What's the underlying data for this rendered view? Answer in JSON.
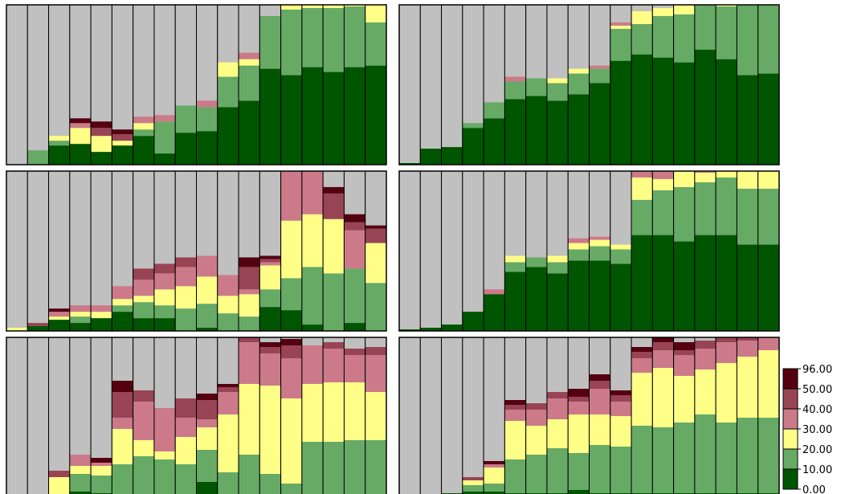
{
  "chart_data": {
    "type": "bar",
    "stacked": true,
    "layout": "small-multiples",
    "panel_grid": {
      "rows": 3,
      "columns": 2
    },
    "y_range": [
      0,
      100
    ],
    "grid": false,
    "axes_labeled": false,
    "remainder_color": "#c0c0c0",
    "legend": {
      "placement": "bottom-right",
      "colors": [
        "#005500",
        "#66aa66",
        "#ffff88",
        "#cc7a8a",
        "#994455",
        "#550011"
      ],
      "bounds": [
        "0.00",
        "10.00",
        "20.00",
        "30.00",
        "40.00",
        "50.00",
        "96.00"
      ]
    },
    "panels": [
      {
        "values": [
          [
            0,
            0,
            0,
            0,
            0,
            0
          ],
          [
            0,
            9,
            0,
            0,
            0,
            0
          ],
          [
            12,
            3,
            3,
            0,
            0,
            0
          ],
          [
            13,
            0,
            10,
            3,
            0,
            3
          ],
          [
            8,
            0,
            10,
            0,
            5,
            4
          ],
          [
            12,
            0,
            3,
            0,
            4,
            3
          ],
          [
            18,
            4,
            4,
            4,
            0,
            0
          ],
          [
            7,
            20,
            0,
            4,
            0,
            0
          ],
          [
            20,
            17,
            0,
            0,
            0,
            0
          ],
          [
            21,
            15,
            0,
            4,
            0,
            0
          ],
          [
            36,
            19,
            9,
            0,
            0,
            0
          ],
          [
            40,
            22,
            4,
            4,
            0,
            0
          ],
          [
            60,
            33,
            0,
            0,
            0,
            0
          ],
          [
            56,
            41,
            14,
            0,
            0,
            0
          ],
          [
            61,
            37,
            14,
            0,
            0,
            0
          ],
          [
            58,
            40,
            13,
            3,
            0,
            0
          ],
          [
            61,
            38,
            20,
            2,
            0,
            0
          ],
          [
            62,
            27,
            34,
            5,
            0,
            0
          ]
        ]
      },
      {
        "values": [
          [
            1,
            0,
            0,
            0,
            0,
            0
          ],
          [
            10,
            0,
            0,
            0,
            0,
            0
          ],
          [
            11,
            0,
            0,
            0,
            0,
            0
          ],
          [
            23,
            3,
            0,
            0,
            0,
            0
          ],
          [
            29,
            10,
            0,
            0,
            0,
            0
          ],
          [
            41,
            11,
            0,
            3,
            0,
            0
          ],
          [
            43,
            11,
            0,
            0,
            0,
            0
          ],
          [
            40,
            11,
            3,
            0,
            0,
            0
          ],
          [
            44,
            13,
            3,
            0,
            0,
            0
          ],
          [
            51,
            9,
            0,
            2,
            0,
            0
          ],
          [
            65,
            20,
            2,
            2,
            0,
            0
          ],
          [
            69,
            19,
            8,
            0,
            0,
            0
          ],
          [
            67,
            26,
            5,
            0,
            0,
            0
          ],
          [
            64,
            30,
            9,
            0,
            0,
            0
          ],
          [
            72,
            30,
            3,
            0,
            3,
            0
          ],
          [
            66,
            33,
            10,
            2,
            2,
            0
          ],
          [
            56,
            50,
            8,
            4,
            0,
            0
          ],
          [
            57,
            51,
            9,
            0,
            0,
            2
          ]
        ]
      },
      {
        "values": [
          [
            0,
            0,
            2,
            0,
            0,
            0
          ],
          [
            3,
            0,
            0,
            0,
            2,
            0
          ],
          [
            7,
            0,
            2,
            3,
            0,
            2
          ],
          [
            5,
            4,
            3,
            4,
            0,
            0
          ],
          [
            8,
            0,
            4,
            4,
            0,
            0
          ],
          [
            12,
            4,
            4,
            8,
            0,
            0
          ],
          [
            8,
            10,
            4,
            10,
            7,
            0
          ],
          [
            8,
            8,
            10,
            10,
            6,
            0
          ],
          [
            0,
            14,
            14,
            12,
            6,
            0
          ],
          [
            2,
            15,
            17,
            13,
            0,
            0
          ],
          [
            0,
            11,
            11,
            13,
            0,
            0
          ],
          [
            0,
            9,
            14,
            3,
            14,
            6
          ],
          [
            15,
            11,
            15,
            2,
            2,
            2
          ],
          [
            13,
            20,
            36,
            33,
            7,
            4
          ],
          [
            4,
            36,
            33,
            33,
            8,
            4
          ],
          [
            0,
            36,
            34,
            0,
            16,
            4
          ],
          [
            5,
            34,
            0,
            24,
            5,
            5
          ],
          [
            0,
            30,
            25,
            0,
            9,
            2
          ]
        ]
      },
      {
        "values": [
          [
            1,
            0,
            0,
            0,
            0,
            0
          ],
          [
            2,
            0,
            0,
            0,
            0,
            0
          ],
          [
            4,
            0,
            0,
            0,
            0,
            0
          ],
          [
            12,
            0,
            0,
            0,
            0,
            0
          ],
          [
            23,
            0,
            0,
            3,
            0,
            0
          ],
          [
            37,
            6,
            4,
            0,
            0,
            0
          ],
          [
            40,
            6,
            0,
            0,
            0,
            0
          ],
          [
            36,
            7,
            4,
            0,
            0,
            0
          ],
          [
            44,
            7,
            4,
            3,
            0,
            0
          ],
          [
            44,
            9,
            4,
            2,
            0,
            0
          ],
          [
            42,
            9,
            3,
            0,
            0,
            0
          ],
          [
            60,
            22,
            14,
            6,
            5,
            3
          ],
          [
            60,
            28,
            7,
            6,
            5,
            2
          ],
          [
            56,
            34,
            11,
            6,
            3,
            0
          ],
          [
            60,
            33,
            6,
            4,
            4,
            0
          ],
          [
            60,
            36,
            10,
            4,
            0,
            0
          ],
          [
            54,
            35,
            15,
            4,
            0,
            0
          ],
          [
            54,
            35,
            16,
            4,
            0,
            0
          ]
        ]
      },
      {
        "values": [
          [
            0,
            0,
            0,
            0,
            0,
            0
          ],
          [
            0,
            0,
            0,
            0,
            0,
            0
          ],
          [
            0,
            0,
            13,
            0,
            4,
            0
          ],
          [
            4,
            11,
            5,
            7,
            0,
            0
          ],
          [
            3,
            11,
            6,
            2,
            0,
            3
          ],
          [
            2,
            19,
            22,
            7,
            16,
            7
          ],
          [
            0,
            26,
            10,
            24,
            7,
            0
          ],
          [
            0,
            24,
            5,
            27,
            0,
            0
          ],
          [
            0,
            21,
            17,
            12,
            12,
            0
          ],
          [
            10,
            20,
            14,
            5,
            12,
            4
          ],
          [
            0,
            16,
            36,
            14,
            3,
            2
          ],
          [
            0,
            27,
            44,
            26,
            8,
            4
          ],
          [
            0,
            15,
            55,
            20,
            4,
            3
          ],
          [
            0,
            9,
            53,
            25,
            8,
            4
          ],
          [
            0,
            35,
            36,
            24,
            0,
            0
          ],
          [
            0,
            35,
            37,
            21,
            4,
            0
          ],
          [
            0,
            36,
            36,
            17,
            4,
            0
          ],
          [
            0,
            36,
            30,
            23,
            5,
            0
          ]
        ]
      },
      {
        "values": [
          [
            0,
            0,
            0,
            0,
            0,
            0
          ],
          [
            0,
            0,
            0,
            0,
            0,
            0
          ],
          [
            3,
            0,
            0,
            0,
            0,
            0
          ],
          [
            4,
            4,
            3,
            0,
            2,
            0
          ],
          [
            4,
            5,
            10,
            2,
            0,
            2
          ],
          [
            3,
            21,
            24,
            7,
            3,
            3
          ],
          [
            3,
            24,
            18,
            10,
            4,
            0
          ],
          [
            3,
            28,
            18,
            13,
            4,
            0
          ],
          [
            5,
            23,
            24,
            8,
            3,
            5
          ],
          [
            3,
            30,
            19,
            16,
            5,
            4
          ],
          [
            3,
            29,
            19,
            9,
            4,
            3
          ],
          [
            3,
            42,
            33,
            9,
            4,
            3
          ],
          [
            3,
            41,
            37,
            11,
            5,
            3
          ],
          [
            3,
            44,
            29,
            13,
            3,
            5
          ],
          [
            3,
            49,
            28,
            13,
            5,
            0
          ],
          [
            3,
            44,
            37,
            13,
            4,
            0
          ],
          [
            3,
            47,
            38,
            10,
            3,
            0
          ],
          [
            3,
            47,
            42,
            10,
            3,
            0
          ]
        ]
      }
    ]
  }
}
